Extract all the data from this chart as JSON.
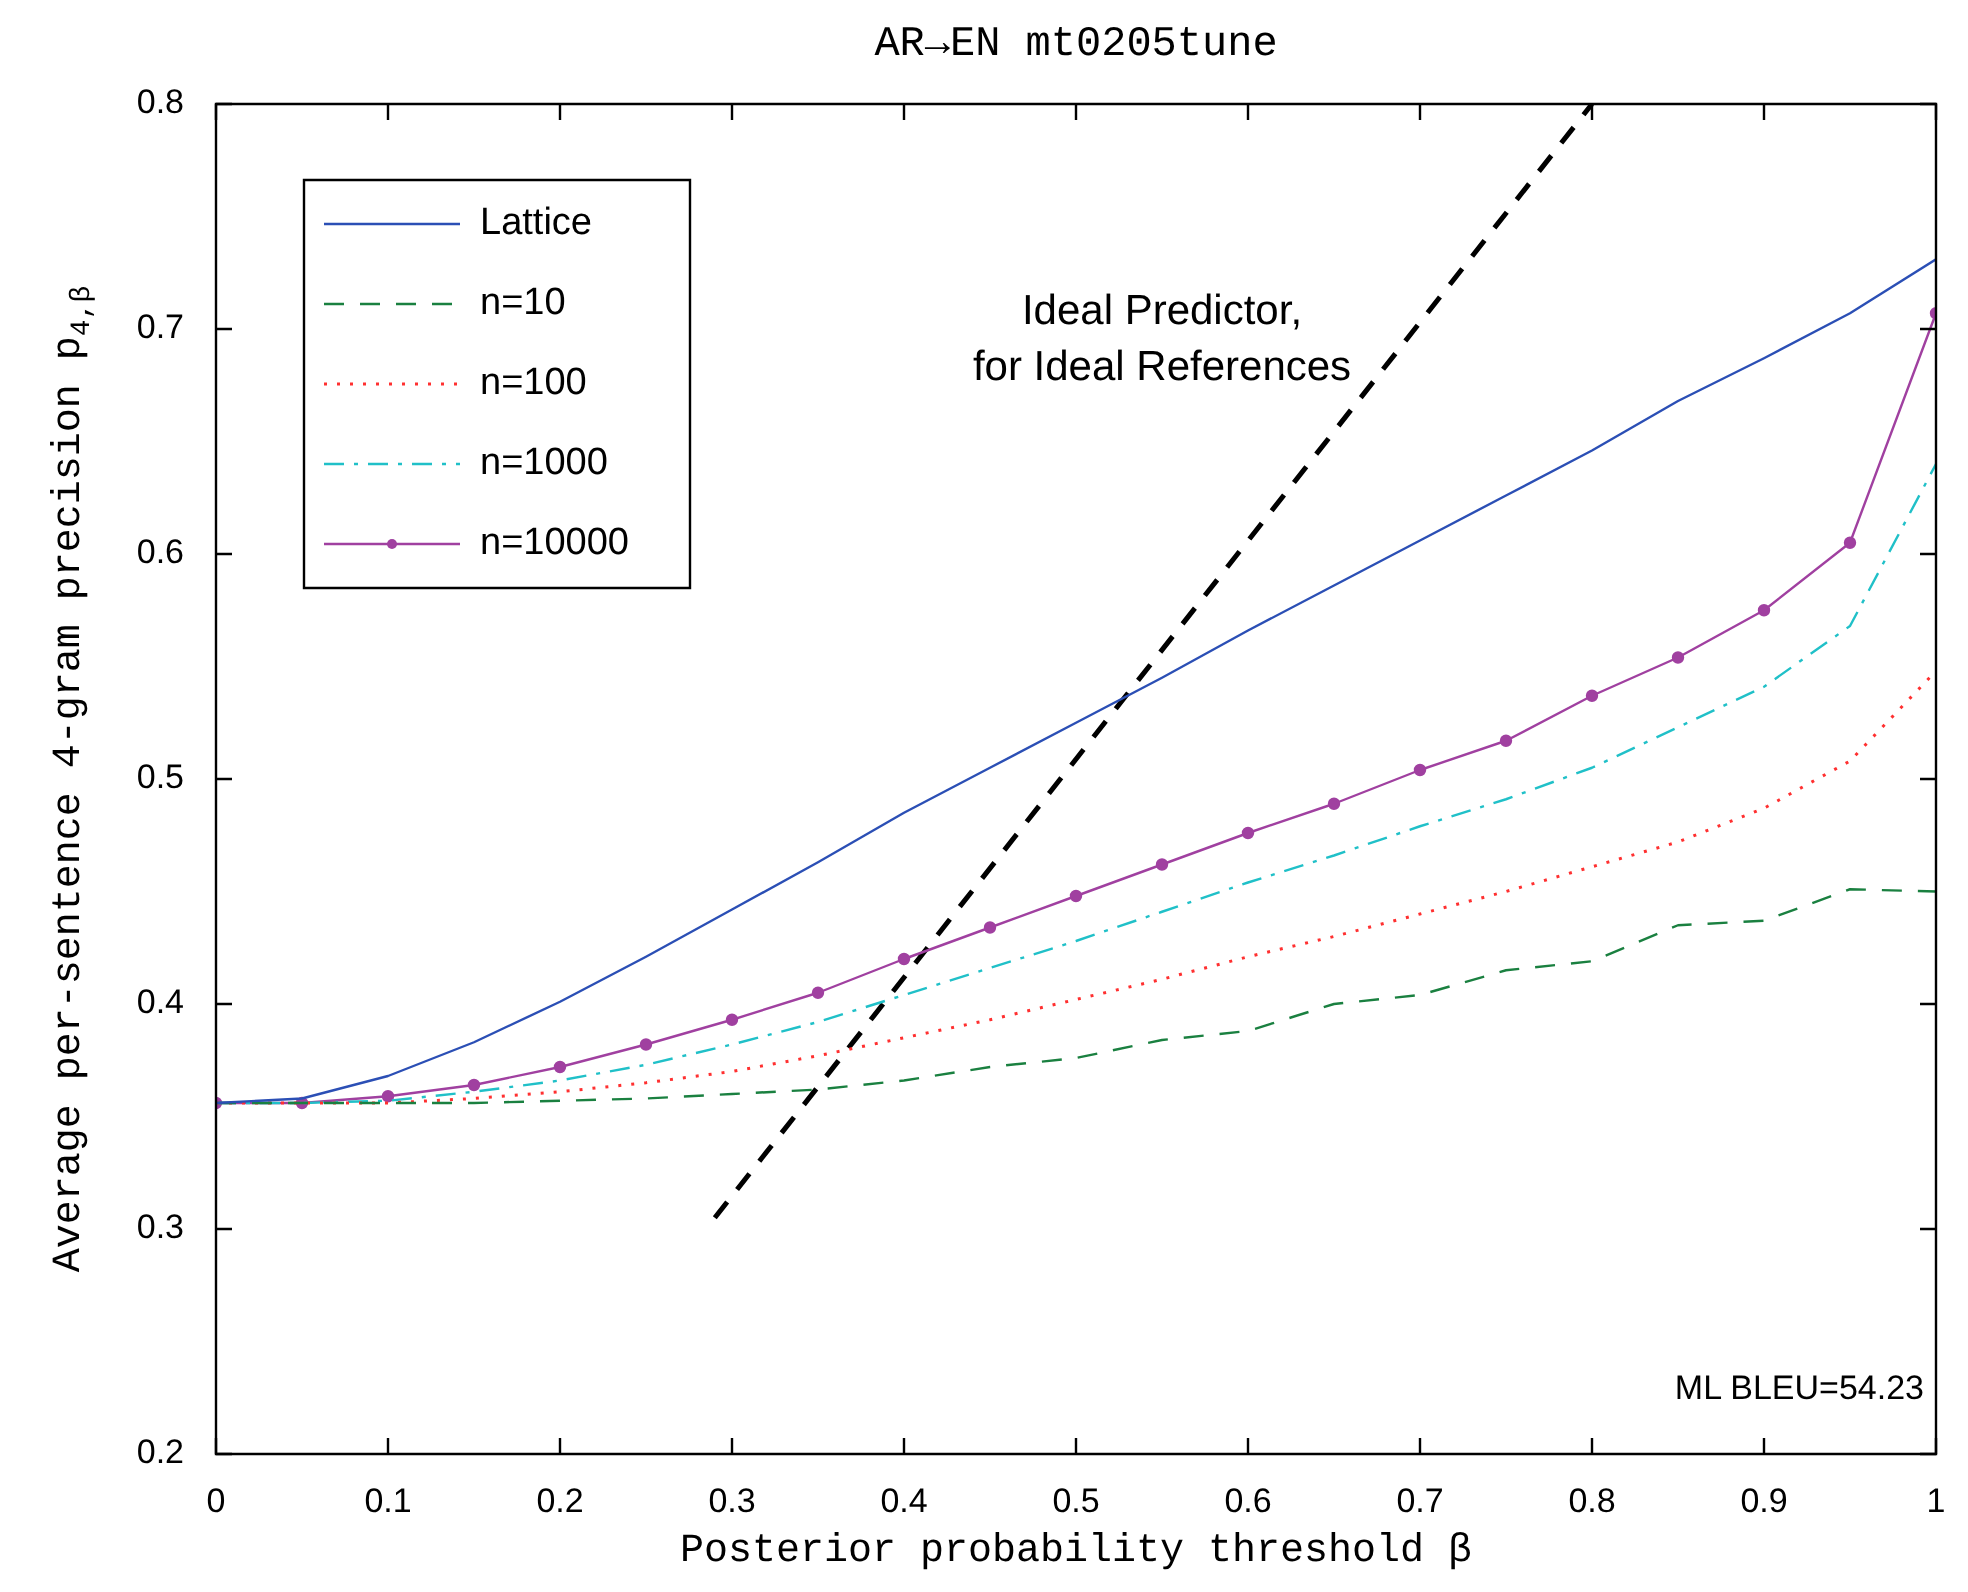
{
  "chart_data": {
    "type": "line",
    "title": "AR→EN mt0205tune",
    "xlabel": "Posterior probability threshold β",
    "ylabel": "Average per-sentence 4-gram precision p$_{4,β}$",
    "x": [
      0,
      0.05,
      0.1,
      0.15,
      0.2,
      0.25,
      0.3,
      0.35,
      0.4,
      0.45,
      0.5,
      0.55,
      0.6,
      0.65,
      0.7,
      0.75,
      0.8,
      0.85,
      0.9,
      0.95,
      1
    ],
    "series": [
      {
        "name": "Lattice",
        "color": "#2b4fb5",
        "line_style": "solid",
        "marker": "none",
        "values": [
          0.356,
          0.358,
          0.368,
          0.383,
          0.401,
          0.421,
          0.442,
          0.463,
          0.485,
          0.505,
          0.525,
          0.545,
          0.566,
          0.586,
          0.606,
          0.626,
          0.646,
          0.668,
          0.687,
          0.707,
          0.731
        ]
      },
      {
        "name": "n=10",
        "color": "#1a8040",
        "line_style": "dashed",
        "marker": "none",
        "values": [
          0.356,
          0.356,
          0.356,
          0.356,
          0.357,
          0.358,
          0.36,
          0.362,
          0.366,
          0.372,
          0.376,
          0.384,
          0.388,
          0.4,
          0.404,
          0.415,
          0.419,
          0.435,
          0.437,
          0.451,
          0.45
        ]
      },
      {
        "name": "n=100",
        "color": "#ff3030",
        "line_style": "dotted",
        "marker": "none",
        "values": [
          0.356,
          0.356,
          0.356,
          0.358,
          0.361,
          0.365,
          0.37,
          0.377,
          0.385,
          0.393,
          0.402,
          0.411,
          0.421,
          0.43,
          0.44,
          0.45,
          0.461,
          0.472,
          0.487,
          0.508,
          0.548
        ]
      },
      {
        "name": "n=1000",
        "color": "#20c0c8",
        "line_style": "dashdot",
        "marker": "none",
        "values": [
          0.356,
          0.356,
          0.357,
          0.361,
          0.366,
          0.373,
          0.382,
          0.392,
          0.404,
          0.416,
          0.428,
          0.441,
          0.454,
          0.466,
          0.479,
          0.491,
          0.505,
          0.523,
          0.541,
          0.568,
          0.64
        ]
      },
      {
        "name": "n=10000",
        "color": "#a040a0",
        "line_style": "solid",
        "marker": "circle",
        "values": [
          0.356,
          0.356,
          0.359,
          0.364,
          0.372,
          0.382,
          0.393,
          0.405,
          0.42,
          0.434,
          0.448,
          0.462,
          0.476,
          0.489,
          0.504,
          0.517,
          0.537,
          0.554,
          0.575,
          0.605,
          0.707
        ]
      },
      {
        "type": "line",
        "color": "#000000",
        "line_style": "dashed",
        "marker": "none",
        "x": [
          0.29,
          0.8
        ],
        "values": [
          0.305,
          0.8
        ]
      }
    ],
    "xlim": [
      0,
      1
    ],
    "xticks": [
      0,
      0.1,
      0.2,
      0.3,
      0.4,
      0.5,
      0.6,
      0.7,
      0.8,
      0.9,
      1
    ],
    "ylim": [
      0.2,
      0.8
    ],
    "yticks": [
      0.2,
      0.3,
      0.4,
      0.5,
      0.6,
      0.7,
      0.8
    ],
    "legend": "top left",
    "grid": false,
    "annotations": [
      "Ideal Predictor,\nfor Ideal References",
      "ML BLEU=54.23"
    ]
  }
}
